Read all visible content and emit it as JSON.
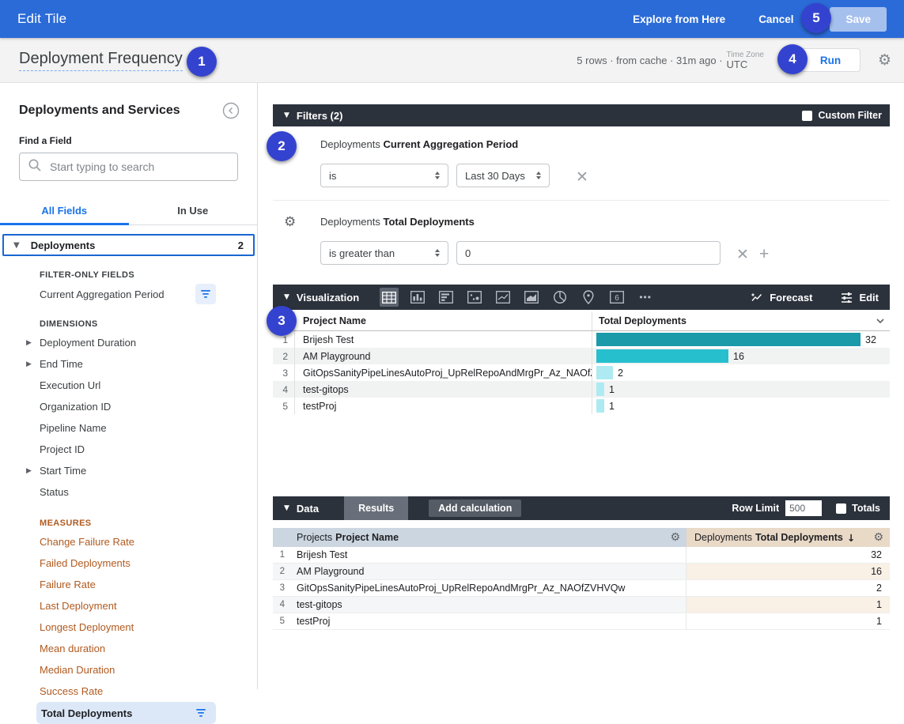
{
  "topbar": {
    "title": "Edit Tile",
    "explore_label": "Explore from Here",
    "cancel_label": "Cancel",
    "save_label": "Save"
  },
  "header": {
    "title": "Deployment Frequency",
    "status": "5 rows · from cache · 31m ago ·",
    "timezone_label": "Time Zone",
    "timezone_value": "UTC",
    "run_label": "Run"
  },
  "sidebar": {
    "title": "Deployments and Services",
    "find_label": "Find a Field",
    "search_placeholder": "Start typing to search",
    "tabs": {
      "all_fields": "All Fields",
      "in_use": "In Use"
    },
    "group": {
      "name": "Deployments",
      "count": "2"
    },
    "filter_only": {
      "header": "FILTER-ONLY FIELDS",
      "items": [
        {
          "label": "Current Aggregation Period"
        }
      ]
    },
    "dimensions": {
      "header": "DIMENSIONS",
      "items": [
        {
          "label": "Deployment Duration",
          "expandable": true
        },
        {
          "label": "End Time",
          "expandable": true
        },
        {
          "label": "Execution Url",
          "expandable": false
        },
        {
          "label": "Organization ID",
          "expandable": false
        },
        {
          "label": "Pipeline Name",
          "expandable": false
        },
        {
          "label": "Project ID",
          "expandable": false
        },
        {
          "label": "Start Time",
          "expandable": true
        },
        {
          "label": "Status",
          "expandable": false
        }
      ]
    },
    "measures": {
      "header": "MEASURES",
      "items": [
        {
          "label": "Change Failure Rate"
        },
        {
          "label": "Failed Deployments"
        },
        {
          "label": "Failure Rate"
        },
        {
          "label": "Last Deployment"
        },
        {
          "label": "Longest Deployment"
        },
        {
          "label": "Mean duration"
        },
        {
          "label": "Median Duration"
        },
        {
          "label": "Success Rate"
        }
      ],
      "selected_item": {
        "label": "Total Deployments"
      }
    }
  },
  "filters": {
    "title": "Filters (2)",
    "custom_filter_label": "Custom Filter",
    "rows": [
      {
        "model": "Deployments",
        "field": "Current Aggregation Period",
        "operator": "is",
        "value": "Last 30 Days"
      },
      {
        "model": "Deployments",
        "field": "Total Deployments",
        "operator": "is greater than",
        "value": "0"
      }
    ]
  },
  "visualization": {
    "title": "Visualization",
    "icons": [
      "table",
      "column-chart",
      "bar-chart",
      "scatter",
      "line-chart",
      "area-chart",
      "donut",
      "map-pin",
      "single-value",
      "more"
    ],
    "selected_icon": "table",
    "forecast_label": "Forecast",
    "edit_label": "Edit",
    "table": {
      "columns": [
        "Project Name",
        "Total Deployments"
      ],
      "rows": [
        {
          "num": "1",
          "project": "Brijesh Test",
          "value": 32
        },
        {
          "num": "2",
          "project": "AM Playground",
          "value": 16
        },
        {
          "num": "3",
          "project": "GitOpsSanityPipeLinesAutoProj_UpRelRepoAndMrgPr_Az_NAOfZ...",
          "value": 2
        },
        {
          "num": "4",
          "project": "test-gitops",
          "value": 1
        },
        {
          "num": "5",
          "project": "testProj",
          "value": 1
        }
      ],
      "bar_colors": [
        "#1b9aaa",
        "#26bfce",
        "#aeeaf2",
        "#aeeaf2",
        "#aeeaf2"
      ]
    }
  },
  "chart_data": {
    "type": "bar",
    "orientation": "horizontal",
    "category_label": "Project Name",
    "value_label": "Total Deployments",
    "categories": [
      "Brijesh Test",
      "AM Playground",
      "GitOpsSanityPipeLinesAutoProj_UpRelRepoAndMrgPr_Az_NAOfZVHVQw",
      "test-gitops",
      "testProj"
    ],
    "values": [
      32,
      16,
      2,
      1,
      1
    ]
  },
  "data_panel": {
    "title": "Data",
    "results_label": "Results",
    "add_calc_label": "Add calculation",
    "row_limit_label": "Row Limit",
    "row_limit_value": "500",
    "totals_label": "Totals",
    "columns": [
      {
        "group": "Projects",
        "field": "Project Name"
      },
      {
        "group": "Deployments",
        "field": "Total Deployments",
        "sort": "↓"
      }
    ],
    "rows": [
      {
        "num": "1",
        "project": "Brijesh Test",
        "value": "32"
      },
      {
        "num": "2",
        "project": "AM Playground",
        "value": "16"
      },
      {
        "num": "3",
        "project": "GitOpsSanityPipeLinesAutoProj_UpRelRepoAndMrgPr_Az_NAOfZVHVQw",
        "value": "2"
      },
      {
        "num": "4",
        "project": "test-gitops",
        "value": "1"
      },
      {
        "num": "5",
        "project": "testProj",
        "value": "1"
      }
    ]
  },
  "badges": [
    "1",
    "2",
    "3",
    "4",
    "5"
  ],
  "colors": {
    "topbar_blue": "#2b6bd8",
    "badge_blue": "#3443cf",
    "accent_blue": "#1a73e8",
    "dark_bar": "#2c323c",
    "measure_orange": "#b05a20",
    "bar_teal_dark": "#1b9aaa",
    "bar_teal_mid": "#26bfce",
    "bar_teal_light": "#aeeaf2",
    "dim_header_bg": "#ccd6e0",
    "measure_header_bg": "#e9d9c7"
  }
}
